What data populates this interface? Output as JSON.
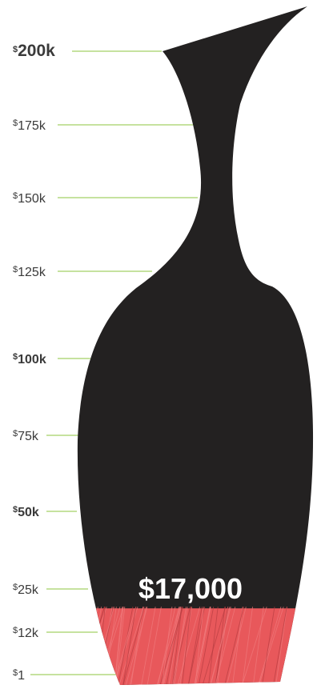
{
  "chart_data": {
    "type": "area",
    "scale_ticks": [
      {
        "currency": "$",
        "label": "200k",
        "value": 200000,
        "emphasis": true
      },
      {
        "currency": "$",
        "label": "175k",
        "value": 175000,
        "emphasis": false
      },
      {
        "currency": "$",
        "label": "150k",
        "value": 150000,
        "emphasis": false
      },
      {
        "currency": "$",
        "label": "125k",
        "value": 125000,
        "emphasis": false
      },
      {
        "currency": "$",
        "label": "100k",
        "value": 100000,
        "emphasis": true
      },
      {
        "currency": "$",
        "label": "75k",
        "value": 75000,
        "emphasis": false
      },
      {
        "currency": "$",
        "label": "50k",
        "value": 50000,
        "emphasis": true
      },
      {
        "currency": "$",
        "label": "25k",
        "value": 25000,
        "emphasis": false
      },
      {
        "currency": "$",
        "label": "12k",
        "value": 12000,
        "emphasis": false
      },
      {
        "currency": "$",
        "label": "1",
        "value": 1,
        "emphasis": false
      }
    ],
    "fill_value": 17000,
    "fill_label": "$17,000",
    "colors": {
      "vase": "#232121",
      "fill": "#e8585b",
      "tick_line": "#8cc63f",
      "label": "#3a3a3a"
    }
  }
}
